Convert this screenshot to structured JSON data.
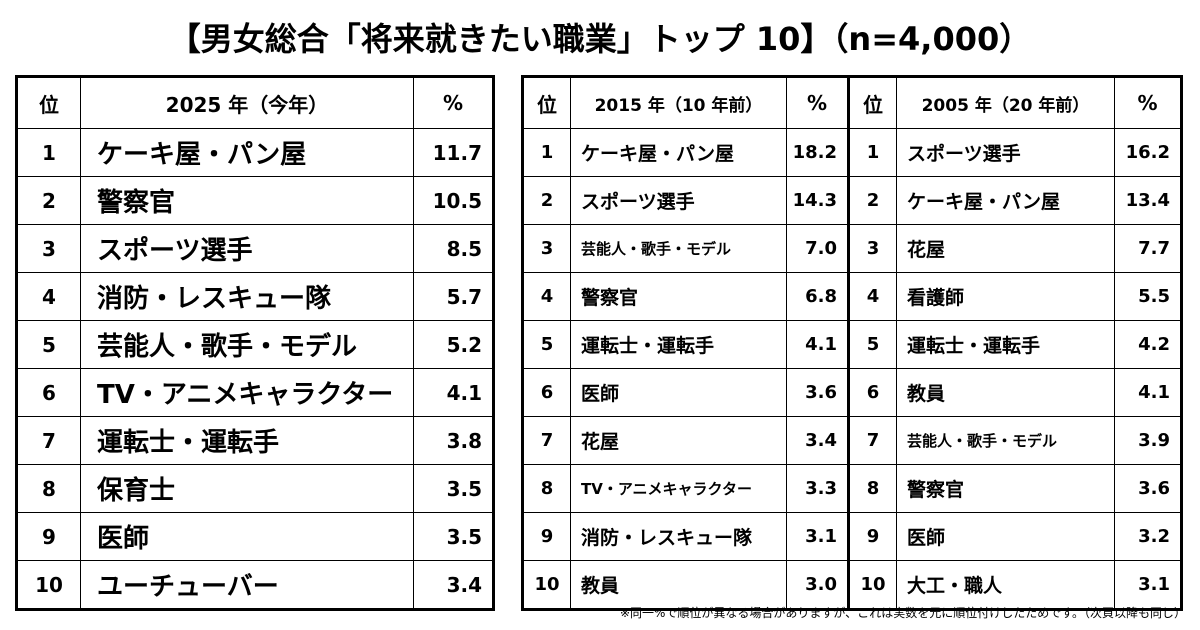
{
  "title": "【男女総合「将来就きたい職業」トップ 10】（n=4,000）",
  "main_table": {
    "headers": {
      "rank": "位",
      "job": "2025 年（今年）",
      "pct": "%"
    },
    "rows": [
      {
        "rank": "1",
        "job": "ケーキ屋・パン屋",
        "pct": "11.7"
      },
      {
        "rank": "2",
        "job": "警察官",
        "pct": "10.5"
      },
      {
        "rank": "3",
        "job": "スポーツ選手",
        "pct": "8.5"
      },
      {
        "rank": "4",
        "job": "消防・レスキュー隊",
        "pct": "5.7"
      },
      {
        "rank": "5",
        "job": "芸能人・歌手・モデル",
        "pct": "5.2"
      },
      {
        "rank": "6",
        "job": "TV・アニメキャラクター",
        "pct": "4.1"
      },
      {
        "rank": "7",
        "job": "運転士・運転手",
        "pct": "3.8"
      },
      {
        "rank": "8",
        "job": "保育士",
        "pct": "3.5"
      },
      {
        "rank": "9",
        "job": "医師",
        "pct": "3.5"
      },
      {
        "rank": "10",
        "job": "ユーチューバー",
        "pct": "3.4"
      }
    ]
  },
  "compare_table": {
    "headers": {
      "rank_a": "位",
      "job_a": "2015 年（10 年前）",
      "pct_a": "%",
      "rank_b": "位",
      "job_b": "2005 年（20 年前）",
      "pct_b": "%"
    },
    "rows": [
      {
        "rank_a": "1",
        "job_a": "ケーキ屋・パン屋",
        "pct_a": "18.2",
        "rank_b": "1",
        "job_b": "スポーツ選手",
        "pct_b": "16.2"
      },
      {
        "rank_a": "2",
        "job_a": "スポーツ選手",
        "pct_a": "14.3",
        "rank_b": "2",
        "job_b": "ケーキ屋・パン屋",
        "pct_b": "13.4"
      },
      {
        "rank_a": "3",
        "job_a": "芸能人・歌手・モデル",
        "pct_a": "7.0",
        "rank_b": "3",
        "job_b": "花屋",
        "pct_b": "7.7"
      },
      {
        "rank_a": "4",
        "job_a": "警察官",
        "pct_a": "6.8",
        "rank_b": "4",
        "job_b": "看護師",
        "pct_b": "5.5"
      },
      {
        "rank_a": "5",
        "job_a": "運転士・運転手",
        "pct_a": "4.1",
        "rank_b": "5",
        "job_b": "運転士・運転手",
        "pct_b": "4.2"
      },
      {
        "rank_a": "6",
        "job_a": "医師",
        "pct_a": "3.6",
        "rank_b": "6",
        "job_b": "教員",
        "pct_b": "4.1"
      },
      {
        "rank_a": "7",
        "job_a": "花屋",
        "pct_a": "3.4",
        "rank_b": "7",
        "job_b": "芸能人・歌手・モデル",
        "pct_b": "3.9"
      },
      {
        "rank_a": "8",
        "job_a": "TV・アニメキャラクター",
        "pct_a": "3.3",
        "rank_b": "8",
        "job_b": "警察官",
        "pct_b": "3.6"
      },
      {
        "rank_a": "9",
        "job_a": "消防・レスキュー隊",
        "pct_a": "3.1",
        "rank_b": "9",
        "job_b": "医師",
        "pct_b": "3.2"
      },
      {
        "rank_a": "10",
        "job_a": "教員",
        "pct_a": "3.0",
        "rank_b": "10",
        "job_b": "大工・職人",
        "pct_b": "3.1"
      }
    ]
  },
  "footnote": "※同一%で順位が異なる場合がありますが、これは実数を元に順位付けしたためです。（次頁以降も同じ）"
}
